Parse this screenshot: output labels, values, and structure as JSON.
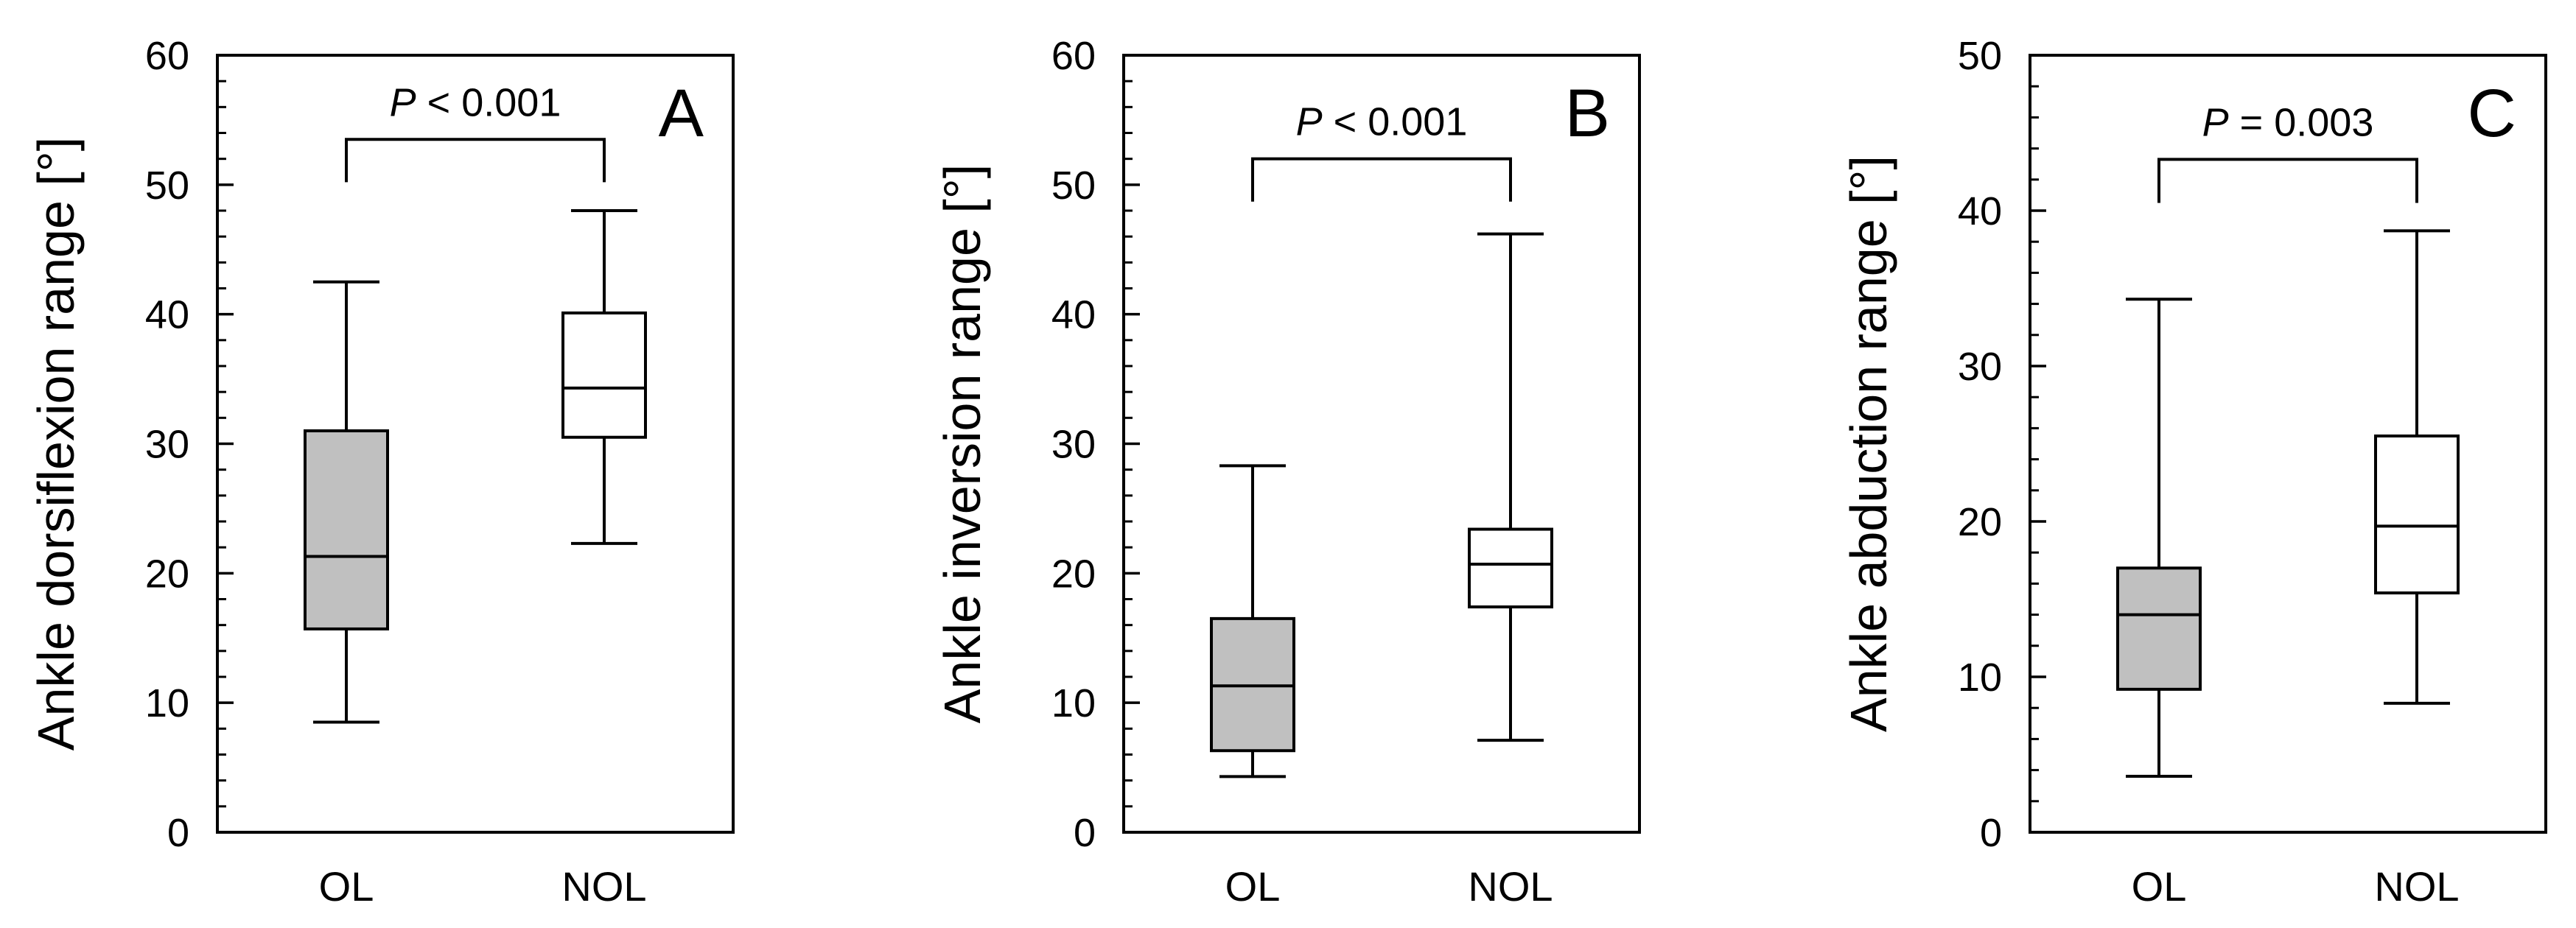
{
  "chart_data": [
    {
      "type": "boxplot",
      "panel_label": "A",
      "ylabel": "Ankle dorsiflexion range [°]",
      "ylim": [
        0,
        60
      ],
      "yticks": [
        0,
        10,
        20,
        30,
        40,
        50,
        60
      ],
      "categories": [
        "OL",
        "NOL"
      ],
      "boxes": [
        {
          "category": "OL",
          "min": 8.5,
          "q1": 15.7,
          "median": 21.3,
          "q3": 31.0,
          "max": 42.5,
          "fill": "#c0c0c0"
        },
        {
          "category": "NOL",
          "min": 22.3,
          "q1": 30.5,
          "median": 34.3,
          "q3": 40.1,
          "max": 48.0,
          "fill": "#ffffff"
        }
      ],
      "annotation": {
        "p_italic": "P",
        "p_rest": " < 0.001",
        "bracket_y": 53.5,
        "bracket_drop": 3.3
      }
    },
    {
      "type": "boxplot",
      "panel_label": "B",
      "ylabel": "Ankle inversion range [°]",
      "ylim": [
        0,
        60
      ],
      "yticks": [
        0,
        10,
        20,
        30,
        40,
        50,
        60
      ],
      "categories": [
        "OL",
        "NOL"
      ],
      "boxes": [
        {
          "category": "OL",
          "min": 4.3,
          "q1": 6.3,
          "median": 11.3,
          "q3": 16.5,
          "max": 28.3,
          "fill": "#c0c0c0"
        },
        {
          "category": "NOL",
          "min": 7.1,
          "q1": 17.4,
          "median": 20.7,
          "q3": 23.4,
          "max": 46.2,
          "fill": "#ffffff"
        }
      ],
      "annotation": {
        "p_italic": "P",
        "p_rest": " < 0.001",
        "bracket_y": 52.0,
        "bracket_drop": 3.3
      }
    },
    {
      "type": "boxplot",
      "panel_label": "C",
      "ylabel": "Ankle abduction range [°]",
      "ylim": [
        0,
        50
      ],
      "yticks": [
        0,
        10,
        20,
        30,
        40,
        50
      ],
      "categories": [
        "OL",
        "NOL"
      ],
      "boxes": [
        {
          "category": "OL",
          "min": 3.6,
          "q1": 9.2,
          "median": 14.0,
          "q3": 17.0,
          "max": 34.3,
          "fill": "#c0c0c0"
        },
        {
          "category": "NOL",
          "min": 8.3,
          "q1": 15.4,
          "median": 19.7,
          "q3": 25.5,
          "max": 38.7,
          "fill": "#ffffff"
        }
      ],
      "annotation": {
        "p_italic": "P",
        "p_rest": " = 0.003",
        "bracket_y": 43.3,
        "bracket_drop": 2.8
      }
    }
  ]
}
